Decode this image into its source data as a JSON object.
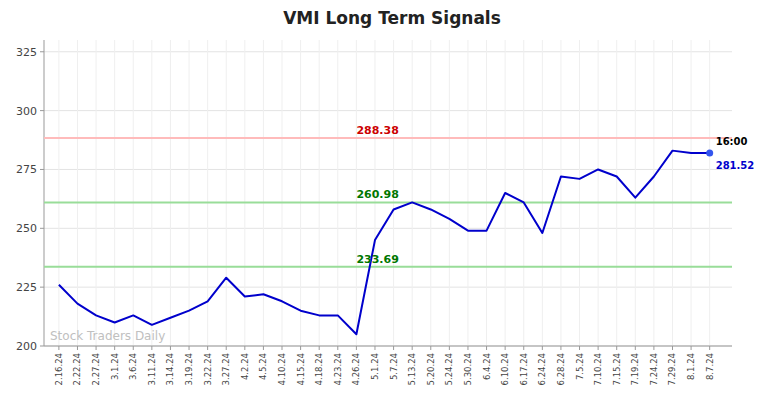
{
  "chart_data": {
    "type": "line",
    "title": "VMI Long Term Signals",
    "categories": [
      "2.16.24",
      "2.22.24",
      "2.27.24",
      "3.1.24",
      "3.6.24",
      "3.11.24",
      "3.14.24",
      "3.19.24",
      "3.22.24",
      "3.27.24",
      "4.2.24",
      "4.5.24",
      "4.10.24",
      "4.15.24",
      "4.18.24",
      "4.23.24",
      "4.26.24",
      "5.1.24",
      "5.7.24",
      "5.13.24",
      "5.20.24",
      "5.24.24",
      "5.30.24",
      "6.4.24",
      "6.10.24",
      "6.17.24",
      "6.24.24",
      "6.28.24",
      "7.5.24",
      "7.10.24",
      "7.15.24",
      "7.19.24",
      "7.24.24",
      "7.29.24",
      "8.1.24",
      "8.7.24"
    ],
    "values": [
      226,
      218,
      213,
      210,
      213,
      209,
      212,
      215,
      219,
      229,
      221,
      222,
      219,
      215,
      213,
      213,
      205,
      245,
      258,
      261,
      258,
      254,
      249,
      249,
      265,
      261,
      248,
      272,
      271,
      275,
      272,
      263,
      272,
      283,
      282,
      282
    ],
    "color": "#0000cc",
    "ylim": [
      200,
      330
    ],
    "yticks": [
      200,
      225,
      250,
      275,
      300,
      325
    ],
    "grid": true,
    "reference_lines": [
      {
        "value": 288.38,
        "color": "#ffbbbb",
        "label": "288.38",
        "label_color": "#cc0000",
        "category": "4.26.24"
      },
      {
        "value": 260.98,
        "color": "#99dd99",
        "label": "260.98",
        "label_color": "#007700",
        "category": "4.26.24"
      },
      {
        "value": 233.69,
        "color": "#99dd99",
        "label": "233.69",
        "label_color": "#007700",
        "category": "4.26.24"
      }
    ],
    "end_marker": {
      "color": "#3355ee",
      "time_label": "16:00",
      "value_label": "281.52",
      "value_label_color": "#0000cc"
    },
    "watermark": {
      "text": "Stock Traders Daily",
      "color": "#c0c0c0"
    }
  }
}
